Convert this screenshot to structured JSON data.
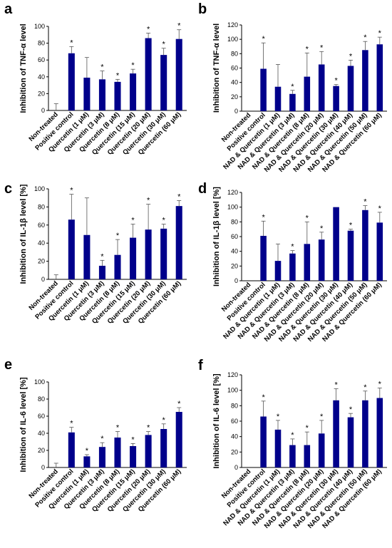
{
  "chart_data": [
    {
      "id": "a",
      "type": "bar",
      "letter": "a",
      "ylabel": "Inhibition of TNF-α  level",
      "ylim": [
        0,
        100
      ],
      "ytick_step": 20,
      "categories": [
        "Non-treated",
        "Positive control",
        "Quercetin (1 μM)",
        "Quercetin (3 μM)",
        "Quercetin (8 μM)",
        "Quercetin (15 μM)",
        "Quercetin (20 μM)",
        "Quercetin (30 μM)",
        "Quercetin (60 μM)"
      ],
      "values": [
        0,
        68,
        39,
        37,
        34,
        44,
        86,
        66,
        85
      ],
      "errors": [
        8,
        8,
        24,
        10,
        3,
        5,
        6,
        8,
        11
      ],
      "significant": [
        false,
        true,
        false,
        true,
        true,
        true,
        true,
        true,
        true
      ],
      "bar_color": "#00008b",
      "grid": false
    },
    {
      "id": "b",
      "type": "bar",
      "letter": "b",
      "ylabel": "Inhibition of TNF-α  level",
      "ylim": [
        0,
        120
      ],
      "ytick_step": 20,
      "categories": [
        "Non-treated",
        "Positive control",
        "NAD & Quercetin (1 μM)",
        "NAD & Quercetin (3 μM)",
        "NAD & Quercetin (8 μM)",
        "NAD & Quercetin (20 μM)",
        "NAD & Quercetin (30 μM)",
        "NAD & Quercetin (40 μM)",
        "NAD & Quercetin (50 μM)",
        "NAD & Quercetin (60 μM)"
      ],
      "values": [
        0,
        59,
        34,
        24,
        48,
        65,
        35,
        63,
        85,
        93
      ],
      "errors": [
        0,
        36,
        31,
        5,
        33,
        18,
        2,
        8,
        12,
        10
      ],
      "significant": [
        false,
        true,
        false,
        true,
        true,
        true,
        true,
        true,
        true,
        true
      ],
      "bar_color": "#00008b",
      "grid": false
    },
    {
      "id": "c",
      "type": "bar",
      "letter": "c",
      "ylabel": "Inhibition of IL-1β level [%]",
      "ylim": [
        0,
        100
      ],
      "ytick_step": 20,
      "categories": [
        "Non-treated",
        "Positive control",
        "Quercetin (1 μM)",
        "Quercetin (3 μM)",
        "Quercetin (8 μM)",
        "Quercetin (15 μM)",
        "Quercetin (20 μM)",
        "Quercetin (30 μM)",
        "Quercetin (60 μM)"
      ],
      "values": [
        0,
        66,
        49,
        15,
        27,
        46,
        55,
        56,
        81
      ],
      "errors": [
        5,
        28,
        41,
        6,
        17,
        15,
        28,
        5,
        6
      ],
      "significant": [
        false,
        true,
        false,
        true,
        true,
        true,
        true,
        true,
        true
      ],
      "bar_color": "#00008b",
      "grid": false
    },
    {
      "id": "d",
      "type": "bar",
      "letter": "d",
      "ylabel": "Inhibition of IL-1β level [%]",
      "ylim": [
        0,
        120
      ],
      "ytick_step": 20,
      "categories": [
        "Non-treated",
        "Positive control",
        "NAD & Quercetin (1 μM)",
        "NAD & Quercetin (3 μM)",
        "NAD & Quercetin (8 μM)",
        "NAD & Quercetin (20 μM)",
        "NAD & Quercetin (30 μM)",
        "NAD & Quercetin (40 μM)",
        "NAD & Quercetin (50 μM)",
        "NAD & Quercetin (60 μM)"
      ],
      "values": [
        0,
        61,
        27,
        37,
        50,
        56,
        100,
        68,
        96,
        79
      ],
      "errors": [
        0,
        20,
        23,
        4,
        30,
        10,
        0,
        2,
        6,
        14
      ],
      "significant": [
        false,
        true,
        false,
        true,
        true,
        true,
        false,
        true,
        true,
        true
      ],
      "bar_color": "#00008b",
      "grid": false
    },
    {
      "id": "e",
      "type": "bar",
      "letter": "e",
      "ylabel": "Inhibition of IL-6 level [%]",
      "ylim": [
        0,
        100
      ],
      "ytick_step": 20,
      "categories": [
        "Non-treated",
        "Positive control",
        "Quercetin (1 μM)",
        "Quercetin (3 μM)",
        "Quercetin (8 μM)",
        "Quercetin (15 μM)",
        "Quercetin (20 μM)",
        "Quercetin (30 μM)",
        "Quercetin (60 μM)"
      ],
      "values": [
        0,
        41,
        13,
        24,
        35,
        25,
        38,
        45,
        65
      ],
      "errors": [
        5,
        6,
        2,
        5,
        7,
        3,
        4,
        6,
        5
      ],
      "significant": [
        false,
        true,
        true,
        true,
        true,
        true,
        true,
        true,
        true
      ],
      "bar_color": "#00008b",
      "grid": false
    },
    {
      "id": "f",
      "type": "bar",
      "letter": "f",
      "ylabel": "Inhibition of IL-6 level [%]",
      "ylim": [
        0,
        120
      ],
      "ytick_step": 20,
      "categories": [
        "Non-treated",
        "Positive control",
        "NAD & Quercetin (1 μM)",
        "NAD & Quercetin (3 μM)",
        "NAD & Quercetin (8 μM)",
        "NAD & Quercetin (20 μM)",
        "NAD & Quercetin (30 μM)",
        "NAD & Quercetin (40 μM)",
        "NAD & Quercetin (50 μM)",
        "NAD & Quercetin (60 μM)"
      ],
      "values": [
        0,
        66,
        49,
        29,
        29,
        44,
        87,
        65,
        87,
        90
      ],
      "errors": [
        0,
        20,
        12,
        8,
        17,
        17,
        15,
        5,
        12,
        13
      ],
      "significant": [
        false,
        true,
        true,
        true,
        true,
        true,
        true,
        true,
        true,
        true
      ],
      "bar_color": "#00008b",
      "grid": false
    }
  ]
}
